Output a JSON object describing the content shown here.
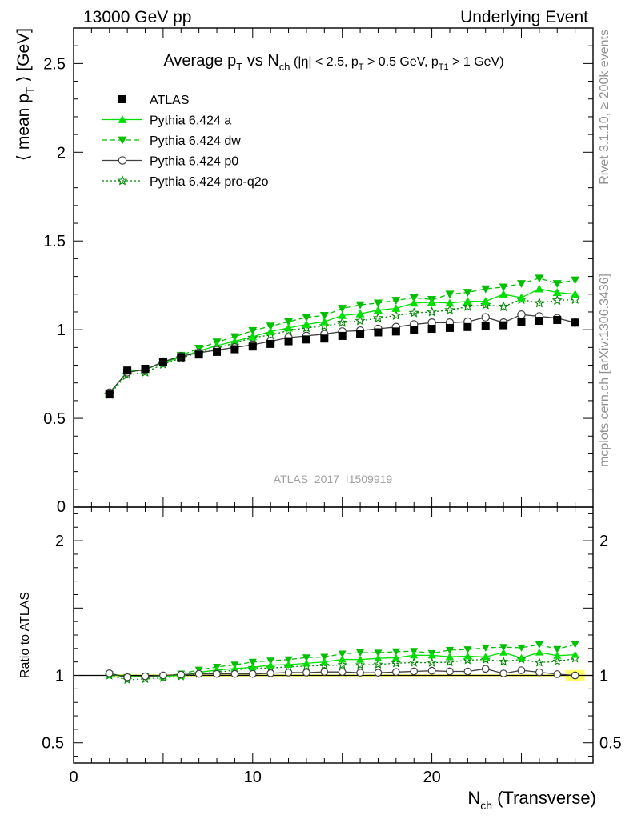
{
  "header": {
    "left": "13000 GeV pp",
    "right": "Underlying Event"
  },
  "side": {
    "top": "Rivet 3.1.10, ≥ 200k events",
    "bottom": "mcplots.cern.ch [arXiv:1306.3436]"
  },
  "chart_data": [
    {
      "type": "line",
      "title_main": "Average p",
      "title_sub_T": "T",
      "title_vs": " vs N",
      "title_sub_ch": "ch",
      "title_cuts_a": " (|η| < 2.5, p",
      "title_cuts_b": " > 0.5 GeV, p",
      "title_sub_T1": "T1",
      "title_cuts_c": " > 1 GeV)",
      "ylabel_pre": "⟨ mean p",
      "ylabel_sub": "T",
      "ylabel_post": " ⟩ [GeV]",
      "xlabel_pre": "N",
      "xlabel_sub": "ch",
      "xlabel_post": " (Transverse)",
      "xlim": [
        0,
        29
      ],
      "ylim": [
        0,
        2.7
      ],
      "yticks": [
        "0.5",
        "1",
        "1.5",
        "2",
        "2.5"
      ],
      "ytick_values": [
        0.5,
        1,
        1.5,
        2,
        2.5
      ],
      "y_zero_label": "0",
      "watermark": "ATLAS_2017_I1509919",
      "legend_position": "top-left",
      "x": [
        2,
        3,
        4,
        5,
        6,
        7,
        8,
        9,
        10,
        11,
        12,
        13,
        14,
        15,
        16,
        17,
        18,
        19,
        20,
        21,
        22,
        23,
        24,
        25,
        26,
        27,
        28
      ],
      "series": [
        {
          "name": "ATLAS",
          "color": "#000000",
          "marker": "square",
          "dash": "none",
          "values": [
            0.635,
            0.77,
            0.78,
            0.82,
            0.845,
            0.86,
            0.875,
            0.89,
            0.905,
            0.92,
            0.935,
            0.945,
            0.95,
            0.965,
            0.975,
            0.985,
            0.99,
            1.0,
            1.005,
            1.01,
            1.015,
            1.02,
            1.025,
            1.045,
            1.05,
            1.055,
            1.04
          ]
        },
        {
          "name": "Pythia 6.424 a",
          "color": "#00e000",
          "marker": "triangle-up",
          "dash": "solid",
          "values": [
            0.64,
            0.765,
            0.775,
            0.815,
            0.845,
            0.88,
            0.91,
            0.935,
            0.96,
            0.99,
            1.01,
            1.03,
            1.045,
            1.08,
            1.09,
            1.11,
            1.12,
            1.15,
            1.155,
            1.15,
            1.16,
            1.16,
            1.2,
            1.18,
            1.23,
            1.21,
            1.2
          ]
        },
        {
          "name": "Pythia 6.424 dw",
          "color": "#00c000",
          "marker": "triangle-down",
          "dash": "dashed",
          "values": [
            0.64,
            0.76,
            0.775,
            0.815,
            0.855,
            0.895,
            0.93,
            0.96,
            0.995,
            1.02,
            1.045,
            1.07,
            1.08,
            1.12,
            1.14,
            1.15,
            1.165,
            1.18,
            1.17,
            1.2,
            1.21,
            1.23,
            1.24,
            1.26,
            1.29,
            1.26,
            1.28
          ]
        },
        {
          "name": "Pythia 6.424 p0",
          "color": "#404040",
          "marker": "circle-open",
          "dash": "solid",
          "values": [
            0.645,
            0.76,
            0.775,
            0.82,
            0.85,
            0.87,
            0.885,
            0.9,
            0.915,
            0.935,
            0.955,
            0.965,
            0.975,
            0.99,
            0.995,
            1.005,
            1.015,
            1.03,
            1.04,
            1.04,
            1.045,
            1.07,
            1.04,
            1.085,
            1.075,
            1.065,
            1.04
          ]
        },
        {
          "name": "Pythia 6.424 pro-q2o",
          "color": "#008800",
          "marker": "star-open",
          "dash": "dotted",
          "values": [
            0.635,
            0.745,
            0.76,
            0.805,
            0.84,
            0.87,
            0.895,
            0.925,
            0.955,
            0.97,
            0.995,
            1.01,
            1.02,
            1.04,
            1.05,
            1.065,
            1.08,
            1.095,
            1.1,
            1.11,
            1.13,
            1.14,
            1.13,
            1.17,
            1.15,
            1.165,
            1.17
          ]
        }
      ]
    },
    {
      "type": "line",
      "ylabel": "Ratio to ATLAS",
      "xlim": [
        0,
        29
      ],
      "ylim": [
        0.35,
        2.25
      ],
      "yticks": [
        "0.5",
        "1",
        "2"
      ],
      "ytick_values": [
        0.5,
        1,
        2
      ],
      "xticks": [
        "0",
        "10",
        "20"
      ],
      "xtick_values": [
        0,
        10,
        20
      ],
      "reference": 1,
      "band_color": "#ffff66"
    }
  ]
}
